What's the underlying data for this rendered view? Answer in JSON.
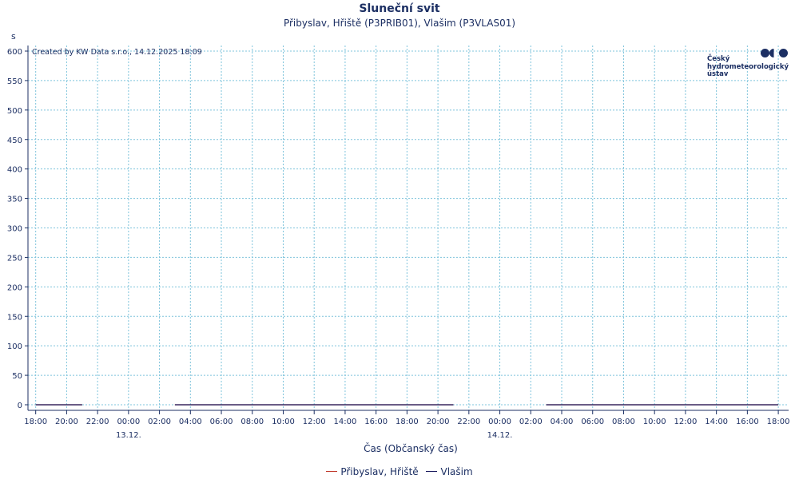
{
  "chart_data": {
    "type": "line",
    "title": "Sluneční svit",
    "subtitle": "Přibyslav, Hřiště (P3PRIB01), Vlašim (P3VLAS01)",
    "ylabel": "s",
    "xlabel": "Čas (Občanský čas)",
    "credit": "Created by KW Data s.r.o., 14.12.2025 18:09",
    "ylim": [
      0,
      600
    ],
    "y_ticks": [
      0,
      50,
      100,
      150,
      200,
      250,
      300,
      350,
      400,
      450,
      500,
      550,
      600
    ],
    "x_range": [
      "2025-12-12 17:30",
      "2025-12-14 18:40"
    ],
    "x_ticks": [
      {
        "t": "2025-12-12 18:00",
        "label": "18:00"
      },
      {
        "t": "2025-12-12 20:00",
        "label": "20:00"
      },
      {
        "t": "2025-12-12 22:00",
        "label": "22:00"
      },
      {
        "t": "2025-12-13 00:00",
        "label": "00:00",
        "date": "13.12."
      },
      {
        "t": "2025-12-13 02:00",
        "label": "02:00"
      },
      {
        "t": "2025-12-13 04:00",
        "label": "04:00"
      },
      {
        "t": "2025-12-13 06:00",
        "label": "06:00"
      },
      {
        "t": "2025-12-13 08:00",
        "label": "08:00"
      },
      {
        "t": "2025-12-13 10:00",
        "label": "10:00"
      },
      {
        "t": "2025-12-13 12:00",
        "label": "12:00"
      },
      {
        "t": "2025-12-13 14:00",
        "label": "14:00"
      },
      {
        "t": "2025-12-13 16:00",
        "label": "16:00"
      },
      {
        "t": "2025-12-13 18:00",
        "label": "18:00"
      },
      {
        "t": "2025-12-13 20:00",
        "label": "20:00"
      },
      {
        "t": "2025-12-13 22:00",
        "label": "22:00"
      },
      {
        "t": "2025-12-14 00:00",
        "label": "00:00",
        "date": "14.12."
      },
      {
        "t": "2025-12-14 02:00",
        "label": "02:00"
      },
      {
        "t": "2025-12-14 04:00",
        "label": "04:00"
      },
      {
        "t": "2025-12-14 06:00",
        "label": "06:00"
      },
      {
        "t": "2025-12-14 08:00",
        "label": "08:00"
      },
      {
        "t": "2025-12-14 10:00",
        "label": "10:00"
      },
      {
        "t": "2025-12-14 12:00",
        "label": "12:00"
      },
      {
        "t": "2025-12-14 14:00",
        "label": "14:00"
      },
      {
        "t": "2025-12-14 16:00",
        "label": "16:00"
      },
      {
        "t": "2025-12-14 18:00",
        "label": "18:00"
      }
    ],
    "series": [
      {
        "name": "Přibyslav, Hřiště",
        "color": "#c0392b",
        "segments": [
          [
            [
              "2025-12-12 18:00",
              0
            ],
            [
              "2025-12-12 21:00",
              0
            ]
          ],
          [
            [
              "2025-12-13 03:00",
              0
            ],
            [
              "2025-12-13 21:00",
              0
            ]
          ],
          [
            [
              "2025-12-14 03:00",
              0
            ],
            [
              "2025-12-14 18:00",
              0
            ]
          ]
        ]
      },
      {
        "name": "Vlašim",
        "color": "#1a1a5e",
        "segments": [
          [
            [
              "2025-12-12 18:00",
              0
            ],
            [
              "2025-12-12 21:00",
              0
            ]
          ],
          [
            [
              "2025-12-13 03:00",
              0
            ],
            [
              "2025-12-13 21:00",
              0
            ]
          ],
          [
            [
              "2025-12-14 03:00",
              0
            ],
            [
              "2025-12-14 18:00",
              0
            ]
          ]
        ]
      }
    ],
    "grid": true,
    "legend_position": "bottom"
  },
  "logo": {
    "lines": [
      "Český",
      "hydrometeorologický",
      "ústav"
    ]
  }
}
